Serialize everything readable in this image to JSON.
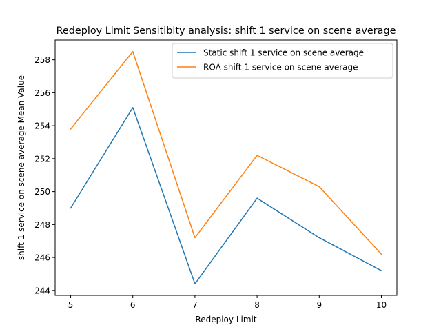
{
  "chart_data": {
    "type": "line",
    "title": "Redeploy Limit Sensitibity analysis: shift 1 service on scene average",
    "xlabel": "Redeploy Limit",
    "ylabel": "shift 1 service on scene average Mean Value",
    "x": [
      5,
      6,
      7,
      8,
      9,
      10
    ],
    "xticks": [
      5,
      6,
      7,
      8,
      9,
      10
    ],
    "yticks": [
      244,
      246,
      248,
      250,
      252,
      254,
      256,
      258
    ],
    "xlim": [
      4.75,
      10.25
    ],
    "ylim": [
      243.7,
      259.2
    ],
    "grid": false,
    "legend_position": "upper right",
    "series": [
      {
        "name": "Static shift 1 service on scene average",
        "color": "#1f77b4",
        "values": [
          249.0,
          255.1,
          244.4,
          249.6,
          247.2,
          245.2
        ]
      },
      {
        "name": "ROA shift 1 service on scene average",
        "color": "#ff7f0e",
        "values": [
          253.8,
          258.5,
          247.2,
          252.2,
          250.3,
          246.2
        ]
      }
    ]
  }
}
